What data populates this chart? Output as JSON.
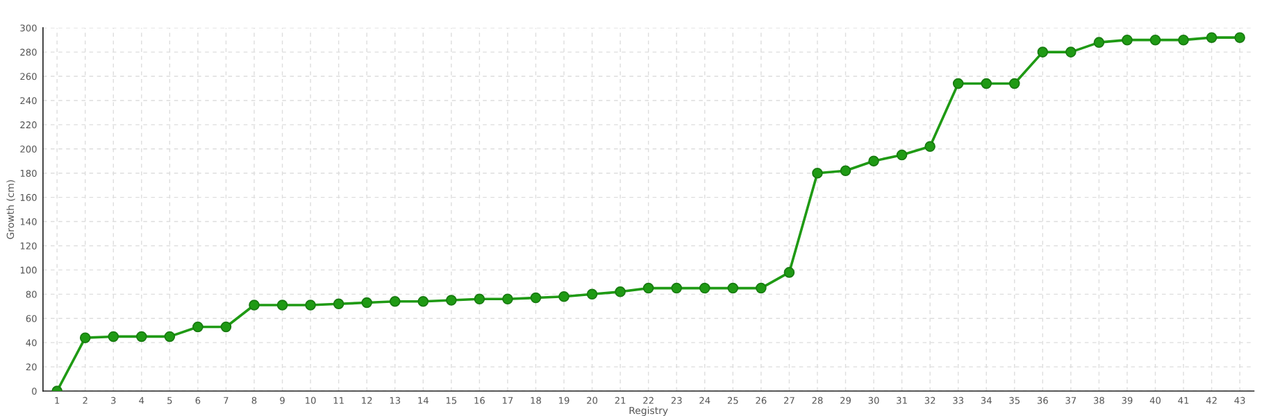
{
  "chart_data": {
    "type": "line",
    "xlabel": "Registry",
    "ylabel": "Growth (cm)",
    "categories": [
      "1",
      "2",
      "3",
      "4",
      "5",
      "6",
      "7",
      "8",
      "9",
      "10",
      "11",
      "12",
      "13",
      "14",
      "15",
      "16",
      "17",
      "18",
      "19",
      "20",
      "21",
      "22",
      "23",
      "24",
      "25",
      "26",
      "27",
      "28",
      "29",
      "30",
      "31",
      "32",
      "33",
      "34",
      "35",
      "36",
      "37",
      "38",
      "39",
      "40",
      "41",
      "42",
      "43"
    ],
    "series": [
      {
        "color": "#1f9a14",
        "values": [
          0,
          44,
          45,
          45,
          45,
          53,
          53,
          71,
          71,
          71,
          72,
          73,
          74,
          74,
          75,
          76,
          76,
          77,
          78,
          80,
          82,
          85,
          85,
          85,
          85,
          85,
          98,
          180,
          182,
          190,
          195,
          202,
          254,
          254,
          254,
          280,
          280,
          288,
          290,
          290,
          290,
          292,
          292
        ]
      }
    ],
    "ylim": [
      0,
      300
    ],
    "yticks": [
      0,
      20,
      40,
      60,
      80,
      100,
      120,
      140,
      160,
      180,
      200,
      220,
      240,
      260,
      280,
      300
    ],
    "grid": true,
    "marker": "circle",
    "line_style": "solid"
  }
}
